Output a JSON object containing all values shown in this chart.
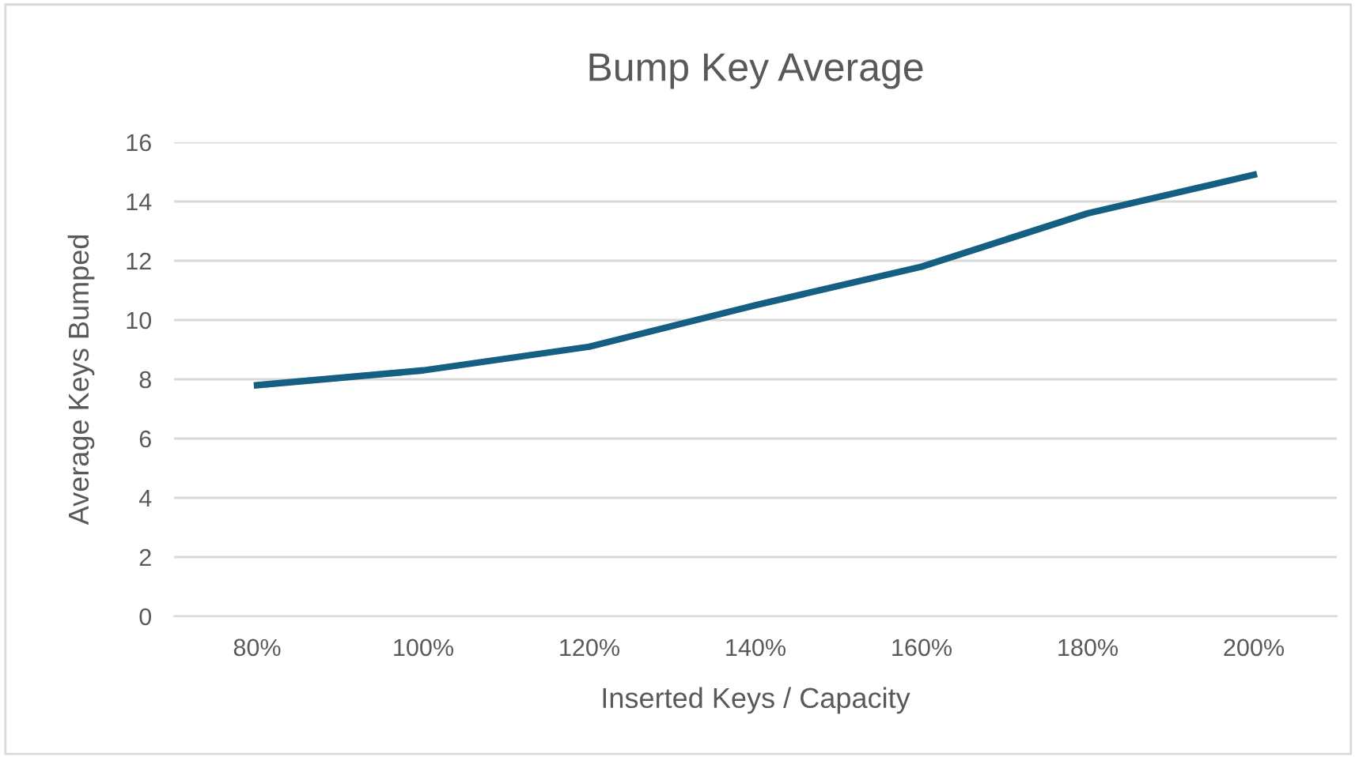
{
  "chart_data": {
    "type": "line",
    "title": "Bump Key Average",
    "xlabel": "Inserted Keys / Capacity",
    "ylabel": "Average Keys Bumped",
    "categories": [
      "80%",
      "100%",
      "120%",
      "140%",
      "160%",
      "180%",
      "200%"
    ],
    "series": [
      {
        "color": "#156082",
        "values": [
          7.8,
          8.3,
          9.1,
          10.5,
          11.8,
          13.6,
          14.9
        ]
      }
    ],
    "ylim": [
      0,
      16
    ],
    "yticks": [
      0,
      2,
      4,
      6,
      8,
      10,
      12,
      14,
      16
    ],
    "grid": "y",
    "legend": false,
    "marker": "none",
    "line_style": "solid"
  }
}
